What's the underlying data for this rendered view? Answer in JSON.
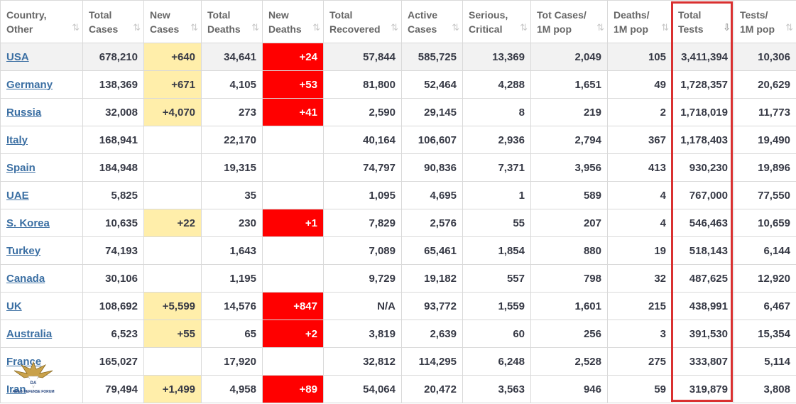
{
  "headers": [
    {
      "l1": "Country,",
      "l2": "Other",
      "sort": "⇅",
      "key": "country"
    },
    {
      "l1": "Total",
      "l2": "Cases",
      "sort": "⇅",
      "key": "total-cases"
    },
    {
      "l1": "New",
      "l2": "Cases",
      "sort": "⇅",
      "key": "new-cases"
    },
    {
      "l1": "Total",
      "l2": "Deaths",
      "sort": "⇅",
      "key": "total-deaths"
    },
    {
      "l1": "New",
      "l2": "Deaths",
      "sort": "⇅",
      "key": "new-deaths"
    },
    {
      "l1": "Total",
      "l2": "Recovered",
      "sort": "⇅",
      "key": "total-recovered"
    },
    {
      "l1": "Active",
      "l2": "Cases",
      "sort": "⇅",
      "key": "active-cases"
    },
    {
      "l1": "Serious,",
      "l2": "Critical",
      "sort": "⇅",
      "key": "serious-critical"
    },
    {
      "l1": "Tot Cases/",
      "l2": "1M pop",
      "sort": "⇅",
      "key": "tot-cases-per-1m"
    },
    {
      "l1": "Deaths/",
      "l2": "1M pop",
      "sort": "⇅",
      "key": "deaths-per-1m"
    },
    {
      "l1": "Total",
      "l2": "Tests",
      "sort": "⇩",
      "key": "total-tests"
    },
    {
      "l1": "Tests/",
      "l2": "1M pop",
      "sort": "⇅",
      "key": "tests-per-1m"
    }
  ],
  "rows": [
    [
      "USA",
      "678,210",
      "+640",
      "34,641",
      "+24",
      "57,844",
      "585,725",
      "13,369",
      "2,049",
      "105",
      "3,411,394",
      "10,306"
    ],
    [
      "Germany",
      "138,369",
      "+671",
      "4,105",
      "+53",
      "81,800",
      "52,464",
      "4,288",
      "1,651",
      "49",
      "1,728,357",
      "20,629"
    ],
    [
      "Russia",
      "32,008",
      "+4,070",
      "273",
      "+41",
      "2,590",
      "29,145",
      "8",
      "219",
      "2",
      "1,718,019",
      "11,773"
    ],
    [
      "Italy",
      "168,941",
      "",
      "22,170",
      "",
      "40,164",
      "106,607",
      "2,936",
      "2,794",
      "367",
      "1,178,403",
      "19,490"
    ],
    [
      "Spain",
      "184,948",
      "",
      "19,315",
      "",
      "74,797",
      "90,836",
      "7,371",
      "3,956",
      "413",
      "930,230",
      "19,896"
    ],
    [
      "UAE",
      "5,825",
      "",
      "35",
      "",
      "1,095",
      "4,695",
      "1",
      "589",
      "4",
      "767,000",
      "77,550"
    ],
    [
      "S. Korea",
      "10,635",
      "+22",
      "230",
      "+1",
      "7,829",
      "2,576",
      "55",
      "207",
      "4",
      "546,463",
      "10,659"
    ],
    [
      "Turkey",
      "74,193",
      "",
      "1,643",
      "",
      "7,089",
      "65,461",
      "1,854",
      "880",
      "19",
      "518,143",
      "6,144"
    ],
    [
      "Canada",
      "30,106",
      "",
      "1,195",
      "",
      "9,729",
      "19,182",
      "557",
      "798",
      "32",
      "487,625",
      "12,920"
    ],
    [
      "UK",
      "108,692",
      "+5,599",
      "14,576",
      "+847",
      "N/A",
      "93,772",
      "1,559",
      "1,601",
      "215",
      "438,991",
      "6,467"
    ],
    [
      "Australia",
      "6,523",
      "+55",
      "65",
      "+2",
      "3,819",
      "2,639",
      "60",
      "256",
      "3",
      "391,530",
      "15,354"
    ],
    [
      "France",
      "165,027",
      "",
      "17,920",
      "",
      "32,812",
      "114,295",
      "6,248",
      "2,528",
      "275",
      "333,807",
      "5,114"
    ],
    [
      "Iran",
      "79,494",
      "+1,499",
      "4,958",
      "+89",
      "54,064",
      "20,472",
      "3,563",
      "946",
      "59",
      "319,879",
      "3,808"
    ]
  ],
  "colors": {
    "new_cases_highlight": "#ffeeaa",
    "new_deaths_highlight": "#ff0000",
    "link": "#3b6fa3",
    "selection_frame": "#d93030"
  },
  "watermark": {
    "icon": "eagle-logo-icon",
    "text": "ARAB DEFENSE FORUM"
  }
}
